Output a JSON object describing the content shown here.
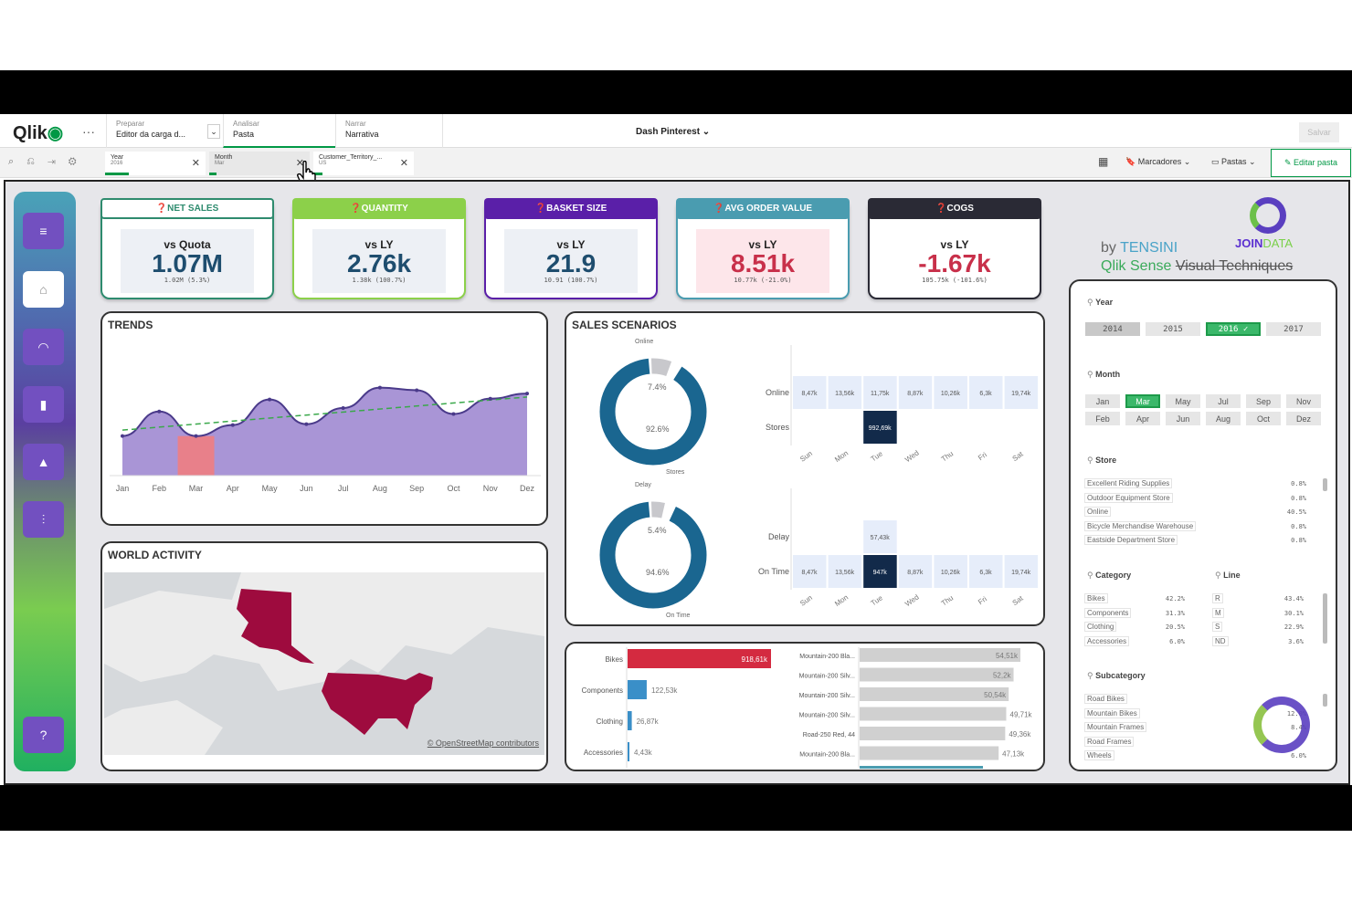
{
  "app": {
    "logo": "Qlik",
    "sheet_title": "Dash Pinterest",
    "save": "Salvar",
    "tabs": [
      {
        "sub": "Preparar",
        "main": "Editor da carga d..."
      },
      {
        "sub": "Analisar",
        "main": "Pasta"
      },
      {
        "sub": "Narrar",
        "main": "Narrativa"
      }
    ],
    "bookmarks": "Marcadores",
    "sheets": "Pastas",
    "edit": "Editar pasta"
  },
  "selections": [
    {
      "field": "Year",
      "value": "2016"
    },
    {
      "field": "Month",
      "value": "Mar"
    },
    {
      "field": "Customer_Territory_...",
      "value": "US"
    }
  ],
  "sidebar": {
    "items": [
      "menu-icon",
      "home-icon",
      "gauge-icon",
      "bar-chart-icon",
      "warning-icon",
      "sliders-icon",
      "help-icon"
    ]
  },
  "kpis": [
    {
      "title": "NET SALES",
      "label": "vs Quota",
      "value": "1.07M",
      "sub": "1.02M (5.3%)",
      "color": "#2e8b6e",
      "value_color": "#1e4d6e"
    },
    {
      "title": "QUANTITY",
      "label": "vs LY",
      "value": "2.76k",
      "sub": "1.38k (100.7%)",
      "color": "#8cd04a",
      "value_color": "#1e4d6e"
    },
    {
      "title": "BASKET SIZE",
      "label": "vs LY",
      "value": "21.9",
      "sub": "10.91 (100.7%)",
      "color": "#5a1fa8",
      "value_color": "#1e4d6e"
    },
    {
      "title": "AVG ORDER VALUE",
      "label": "vs LY",
      "value": "8.51k",
      "sub": "10.77k (-21.0%)",
      "color": "#4a9cb0",
      "value_color": "#c8304a"
    },
    {
      "title": "COGS",
      "label": "vs LY",
      "value": "-1.67k",
      "sub": "105.75k (-101.6%)",
      "color": "#2a2a35",
      "value_color": "#c8304a"
    }
  ],
  "branding": {
    "by": "by ",
    "tensini": "TENSINI",
    "line1": "Qlik Sense",
    "line2": "Visual Techniques",
    "join": "JOIN",
    "data": "DATA"
  },
  "trends": {
    "title": "TRENDS",
    "months": [
      "Jan",
      "Feb",
      "Mar",
      "Apr",
      "May",
      "Jun",
      "Jul",
      "Aug",
      "Sep",
      "Oct",
      "Nov",
      "Dez"
    ],
    "values": [
      38,
      67,
      38,
      51,
      81,
      52,
      71,
      95,
      92,
      64,
      82,
      88
    ],
    "highlight": "Mar",
    "area_color": "#a995d6",
    "trend_color": "#3aa84a",
    "highlight_color": "#e8808a"
  },
  "world": {
    "title": "WORLD ACTIVITY",
    "attribution": "© OpenStreetMap contributors",
    "highlight_color": "#9e0b3e"
  },
  "sales": {
    "title": "SALES SCENARIOS",
    "days": [
      "Sun",
      "Mon",
      "Tue",
      "Wed",
      "Thu",
      "Fri",
      "Sat"
    ],
    "donut1": {
      "labels": [
        "Online",
        "Stores"
      ],
      "pcts": [
        "7.4%",
        "92.6%"
      ],
      "values": [
        7.4,
        92.6
      ]
    },
    "donut2": {
      "labels": [
        "Delay",
        "On Time"
      ],
      "pcts": [
        "5.4%",
        "94.6%"
      ],
      "values": [
        5.4,
        94.6
      ]
    },
    "heat1": {
      "rows": [
        {
          "label": "Online",
          "cells": [
            "8,47k",
            "13,56k",
            "11,75k",
            "8,87k",
            "10,26k",
            "6,3k",
            "19,74k"
          ]
        },
        {
          "label": "Stores",
          "cells": [
            "",
            "",
            "992,69k",
            "",
            "",
            "",
            ""
          ]
        }
      ]
    },
    "heat2": {
      "rows": [
        {
          "label": "Delay",
          "cells": [
            "",
            "",
            "57,43k",
            "",
            "",
            "",
            ""
          ]
        },
        {
          "label": "On Time",
          "cells": [
            "8,47k",
            "13,56k",
            "947k",
            "8,87k",
            "10,26k",
            "6,3k",
            "19,74k"
          ]
        }
      ]
    }
  },
  "category_bars": [
    {
      "label": "Bikes",
      "value": 918.61,
      "text": "918,61k",
      "color": "#d42a40"
    },
    {
      "label": "Components",
      "value": 122.53,
      "text": "122,53k",
      "color": "#3a8fc8"
    },
    {
      "label": "Clothing",
      "value": 26.87,
      "text": "26,87k",
      "color": "#3a8fc8"
    },
    {
      "label": "Accessories",
      "value": 4.43,
      "text": "4,43k",
      "color": "#3a8fc8"
    }
  ],
  "product_bars": [
    {
      "label": "Mountain-200 Bla...",
      "value": 54.51,
      "text": "54,51k"
    },
    {
      "label": "Mountain-200 Silv...",
      "value": 52.2,
      "text": "52,2k"
    },
    {
      "label": "Mountain-200 Silv...",
      "value": 50.54,
      "text": "50,54k"
    },
    {
      "label": "Mountain-200 Silv...",
      "value": 49.71,
      "text": "49,71k"
    },
    {
      "label": "Road-250 Red, 44",
      "value": 49.36,
      "text": "49,36k"
    },
    {
      "label": "Mountain-200 Bla...",
      "value": 47.13,
      "text": "47,13k"
    }
  ],
  "filters": {
    "year": {
      "title": "Year",
      "options": [
        "2014",
        "2015",
        "2016 ✓",
        "2017"
      ],
      "selected": 2
    },
    "month": {
      "title": "Month",
      "options": [
        "Jan",
        "Mar",
        "May",
        "Jul",
        "Sep",
        "Nov",
        "Feb",
        "Apr",
        "Jun",
        "Aug",
        "Oct",
        "Dez"
      ],
      "selected": 1
    },
    "store": {
      "title": "Store",
      "items": [
        {
          "n": "Excellent Riding Supplies",
          "p": "0.8%"
        },
        {
          "n": "Outdoor Equipment Store",
          "p": "0.8%"
        },
        {
          "n": "Online",
          "p": "40.5%"
        },
        {
          "n": "Bicycle Merchandise Warehouse",
          "p": "0.8%"
        },
        {
          "n": "Eastside Department Store",
          "p": "0.8%"
        }
      ]
    },
    "category": {
      "title": "Category",
      "items": [
        {
          "n": "Bikes",
          "p": "42.2%"
        },
        {
          "n": "Components",
          "p": "31.3%"
        },
        {
          "n": "Clothing",
          "p": "20.5%"
        },
        {
          "n": "Accessories",
          "p": "6.0%"
        }
      ]
    },
    "line": {
      "title": "Line",
      "items": [
        {
          "n": "R",
          "p": "43.4%"
        },
        {
          "n": "M",
          "p": "30.1%"
        },
        {
          "n": "S",
          "p": "22.9%"
        },
        {
          "n": "ND",
          "p": "3.6%"
        }
      ]
    },
    "subcategory": {
      "title": "Subcategory",
      "items": [
        {
          "n": "Road Bikes",
          "p": ""
        },
        {
          "n": "Mountain Bikes",
          "p": "12.0%"
        },
        {
          "n": "Mountain Frames",
          "p": "8.4%"
        },
        {
          "n": "Road Frames",
          "p": ""
        },
        {
          "n": "Wheels",
          "p": "6.0%"
        }
      ]
    }
  },
  "colors": {
    "qlik_green": "#009845",
    "donut": "#1a6690",
    "heat_light": "#e6edfa",
    "heat_dark": "#122a4a",
    "bar_gray": "#d0d0d0"
  }
}
